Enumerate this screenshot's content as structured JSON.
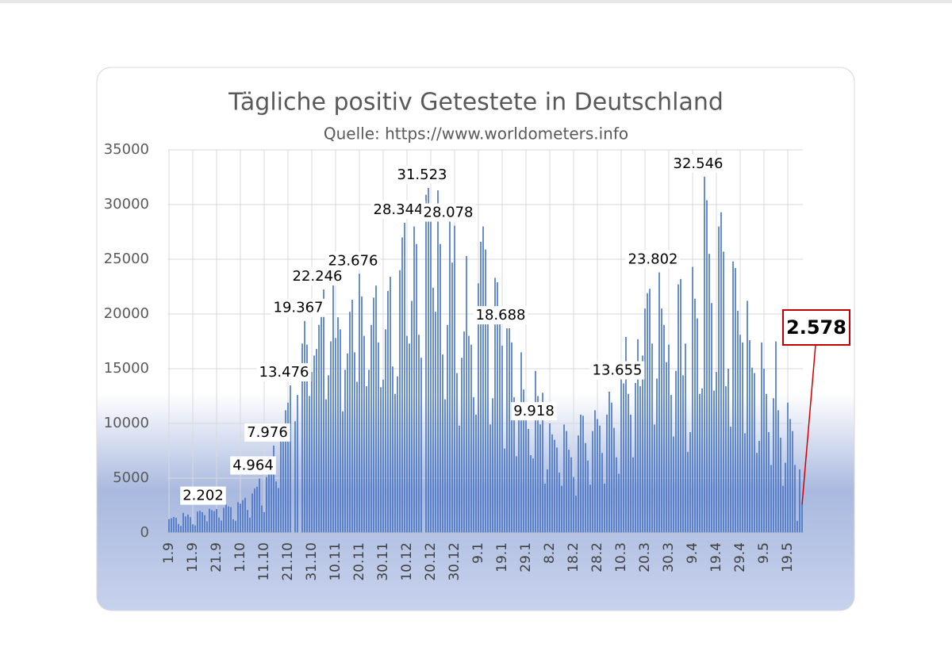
{
  "chart_data": {
    "type": "bar",
    "title": "Tägliche positiv Getestete in Deutschland",
    "subtitle": "Quelle: https://www.worldometers.info",
    "color": "#4472c4",
    "grid": true,
    "ylim": [
      0,
      35000
    ],
    "yticks": [
      0,
      5000,
      10000,
      15000,
      20000,
      25000,
      30000,
      35000
    ],
    "categories": [
      "1.9",
      null,
      null,
      null,
      null,
      null,
      null,
      null,
      null,
      null,
      "11.9",
      null,
      null,
      null,
      null,
      null,
      null,
      null,
      null,
      null,
      "21.9",
      null,
      null,
      null,
      null,
      null,
      null,
      null,
      null,
      null,
      "1.10",
      null,
      null,
      null,
      null,
      null,
      null,
      null,
      null,
      null,
      "11.10",
      null,
      null,
      null,
      null,
      null,
      null,
      null,
      null,
      null,
      "21.10",
      null,
      null,
      null,
      null,
      null,
      null,
      null,
      null,
      null,
      "31.10",
      null,
      null,
      null,
      null,
      null,
      null,
      null,
      null,
      null,
      "10.11",
      null,
      null,
      null,
      null,
      null,
      null,
      null,
      null,
      null,
      "20.11",
      null,
      null,
      null,
      null,
      null,
      null,
      null,
      null,
      null,
      "30.11",
      null,
      null,
      null,
      null,
      null,
      null,
      null,
      null,
      null,
      "10.12",
      null,
      null,
      null,
      null,
      null,
      null,
      null,
      null,
      null,
      "20.12",
      null,
      null,
      null,
      null,
      null,
      null,
      null,
      null,
      null,
      "30.12",
      null,
      null,
      null,
      null,
      null,
      null,
      null,
      null,
      null,
      "9.1",
      null,
      null,
      null,
      null,
      null,
      null,
      null,
      null,
      null,
      "19.1",
      null,
      null,
      null,
      null,
      null,
      null,
      null,
      null,
      null,
      "29.1",
      null,
      null,
      null,
      null,
      null,
      null,
      null,
      null,
      null,
      "8.2",
      null,
      null,
      null,
      null,
      null,
      null,
      null,
      null,
      null,
      "18.2",
      null,
      null,
      null,
      null,
      null,
      null,
      null,
      null,
      null,
      "28.2",
      null,
      null,
      null,
      null,
      null,
      null,
      null,
      null,
      null,
      "10.3",
      null,
      null,
      null,
      null,
      null,
      null,
      null,
      null,
      null,
      "20.3",
      null,
      null,
      null,
      null,
      null,
      null,
      null,
      null,
      null,
      "30.3",
      null,
      null,
      null,
      null,
      null,
      null,
      null,
      null,
      null,
      "9.4",
      null,
      null,
      null,
      null,
      null,
      null,
      null,
      null,
      null,
      "19.4",
      null,
      null,
      null,
      null,
      null,
      null,
      null,
      null,
      null,
      "29.4",
      null,
      null,
      null,
      null,
      null,
      null,
      null,
      null,
      null,
      "9.5",
      null,
      null,
      null,
      null,
      null,
      null,
      null,
      null,
      null,
      "19.5",
      null,
      null,
      null,
      null,
      null,
      null
    ],
    "values": [
      1256,
      1338,
      1450,
      1380,
      810,
      640,
      1820,
      1490,
      1670,
      1430,
      790,
      680,
      1950,
      2010,
      1890,
      1620,
      1050,
      2202,
      2070,
      1980,
      2180,
      1400,
      1120,
      2300,
      2600,
      2410,
      2350,
      1240,
      1100,
      2800,
      2670,
      2990,
      3200,
      2100,
      1400,
      3600,
      4050,
      4210,
      4964,
      2500,
      1900,
      5100,
      6300,
      6900,
      7976,
      4700,
      4100,
      8600,
      9800,
      11200,
      11900,
      13476,
      null,
      10200,
      12600,
      null,
      17300,
      19367,
      17200,
      12500,
      14700,
      16200,
      16800,
      19000,
      20300,
      22246,
      12200,
      14400,
      17500,
      23000,
      17800,
      19700,
      18600,
      11100,
      14900,
      16400,
      20200,
      21300,
      16500,
      13800,
      23676,
      21600,
      18000,
      13400,
      14900,
      19000,
      21500,
      22600,
      17400,
      13300,
      14000,
      18600,
      22100,
      23400,
      15200,
      12700,
      14300,
      24000,
      27000,
      28344,
      18000,
      17300,
      21200,
      28000,
      26400,
      18100,
      16000,
      null,
      30900,
      31523,
      29000,
      22400,
      20200,
      31300,
      26400,
      16300,
      12200,
      19000,
      29300,
      24700,
      28078,
      14600,
      9800,
      16000,
      18400,
      25300,
      18000,
      17200,
      12400,
      10800,
      22800,
      26600,
      28000,
      25900,
      20200,
      9900,
      12300,
      23300,
      22900,
      19300,
      17100,
      7700,
      18688,
      18700,
      17400,
      12400,
      7000,
      11300,
      16500,
      13100,
      10400,
      9500,
      7100,
      6800,
      14800,
      12500,
      9918,
      12800,
      4500,
      5800,
      10000,
      9000,
      8500,
      7800,
      5500,
      4300,
      9900,
      9300,
      7600,
      6900,
      5100,
      3400,
      8900,
      10800,
      10700,
      8200,
      6600,
      4400,
      9300,
      11200,
      10400,
      9800,
      7300,
      4500,
      10800,
      12900,
      11900,
      9600,
      6900,
      5400,
      14200,
      13655,
      17900,
      12700,
      10800,
      6900,
      13700,
      17700,
      13400,
      16200,
      20500,
      21900,
      22300,
      17300,
      9900,
      14100,
      23802,
      20500,
      19000,
      15600,
      17200,
      12600,
      8800,
      14800,
      22700,
      23200,
      14400,
      17300,
      7400,
      9200,
      24300,
      21400,
      19600,
      12700,
      13200,
      32546,
      30400,
      25500,
      21000,
      13000,
      14700,
      28000,
      29300,
      25700,
      13400,
      15000,
      9700,
      24800,
      24200,
      20300,
      18100,
      17400,
      9100,
      21200,
      17600,
      15100,
      14600,
      7300,
      8400,
      17400,
      15000,
      12700,
      9200,
      6200,
      12300,
      17500,
      11200,
      8700,
      4300,
      6400,
      11900,
      10400,
      9300,
      6200,
      1100,
      5800,
      2578
    ],
    "value_labels": [
      null,
      null,
      null,
      null,
      null,
      null,
      null,
      null,
      null,
      null,
      null,
      null,
      null,
      null,
      null,
      null,
      null,
      "2.202",
      null,
      null,
      null,
      null,
      null,
      null,
      null,
      null,
      null,
      null,
      null,
      null,
      null,
      null,
      null,
      null,
      null,
      null,
      null,
      null,
      "4.964",
      null,
      null,
      null,
      null,
      null,
      "7.976",
      null,
      null,
      null,
      null,
      null,
      null,
      "13.476",
      null,
      null,
      null,
      null,
      null,
      "19.367",
      null,
      null,
      null,
      null,
      null,
      null,
      null,
      "22.246",
      null,
      null,
      null,
      null,
      null,
      null,
      null,
      null,
      null,
      null,
      null,
      null,
      null,
      null,
      "23.676",
      null,
      null,
      null,
      null,
      null,
      null,
      null,
      null,
      null,
      null,
      null,
      null,
      null,
      null,
      null,
      null,
      null,
      null,
      "28.344",
      null,
      null,
      null,
      null,
      null,
      null,
      null,
      null,
      null,
      "31.523",
      null,
      null,
      null,
      null,
      null,
      null,
      null,
      null,
      null,
      null,
      "28.078",
      null,
      null,
      null,
      null,
      null,
      null,
      null,
      null,
      null,
      null,
      null,
      null,
      null,
      null,
      null,
      null,
      null,
      null,
      null,
      null,
      null,
      "18.688",
      null,
      null,
      null,
      null,
      null,
      null,
      null,
      null,
      null,
      null,
      null,
      null,
      null,
      "9.918",
      null,
      null,
      null,
      null,
      null,
      null,
      null,
      null,
      null,
      null,
      null,
      null,
      null,
      null,
      null,
      null,
      null,
      null,
      null,
      null,
      null,
      null,
      null,
      null,
      null,
      null,
      null,
      null,
      null,
      null,
      null,
      null,
      null,
      null,
      "13.655",
      null,
      null,
      null,
      null,
      null,
      null,
      null,
      null,
      null,
      null,
      null,
      null,
      null,
      null,
      "23.802",
      null,
      null,
      null,
      null,
      null,
      null,
      null,
      null,
      null,
      null,
      null,
      null,
      null,
      null,
      null,
      null,
      null,
      null,
      "32.546",
      null,
      null,
      null,
      null,
      null,
      null,
      null,
      null,
      null,
      null,
      null,
      null,
      null,
      null,
      null,
      null,
      null,
      null,
      null,
      null,
      null,
      null,
      null,
      null,
      null,
      null,
      null,
      null,
      null,
      null,
      null,
      null,
      null,
      null,
      null,
      null,
      null,
      null,
      null,
      null,
      "2.578"
    ]
  }
}
